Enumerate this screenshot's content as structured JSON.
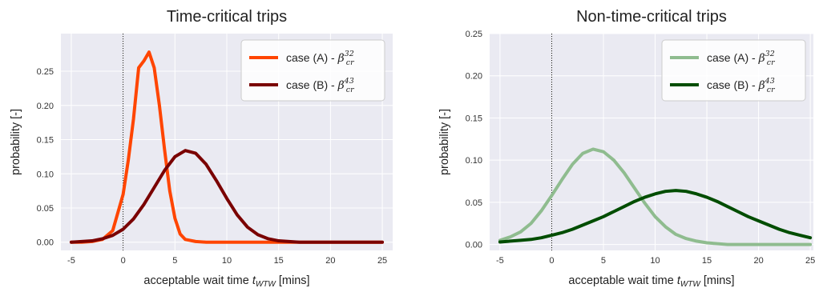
{
  "chart_data": [
    {
      "type": "line",
      "title": "Time-critical trips",
      "xlabel_text": "acceptable wait time ",
      "xlabel_symbol": "t",
      "xlabel_subscript": "WTW",
      "xlabel_unit": " [mins]",
      "ylabel": "probability [-]",
      "xlim": [
        -6,
        26
      ],
      "ylim": [
        -0.012,
        0.305
      ],
      "xticks": [
        -5,
        0,
        5,
        10,
        15,
        20,
        25
      ],
      "yticks": [
        0.0,
        0.05,
        0.1,
        0.15,
        0.2,
        0.25
      ],
      "ytick_labels": [
        "0.00",
        "0.05",
        "0.10",
        "0.15",
        "0.20",
        "0.25"
      ],
      "vline_x": 0,
      "grid": true,
      "legend_placement": "top-right",
      "series": [
        {
          "name_text": "case (A) - ",
          "name_symbol": "β",
          "name_sub": "cr",
          "name_sup": "32",
          "color": "#ff4500",
          "x": [
            -5,
            -4,
            -3,
            -2,
            -1,
            0,
            0.5,
            1,
            1.5,
            2,
            2.5,
            3,
            3.5,
            4,
            4.5,
            5,
            5.5,
            6,
            7,
            8,
            9,
            10,
            11,
            12,
            13,
            14,
            15,
            16,
            17,
            18,
            19,
            20,
            21,
            22,
            23,
            24,
            25
          ],
          "y": [
            0,
            0,
            0.001,
            0.004,
            0.017,
            0.07,
            0.12,
            0.18,
            0.255,
            0.265,
            0.278,
            0.255,
            0.2,
            0.135,
            0.075,
            0.035,
            0.012,
            0.004,
            0.001,
            0,
            0,
            0,
            0,
            0,
            0,
            0,
            0,
            0,
            0,
            0,
            0,
            0,
            0,
            0,
            0,
            0,
            0
          ]
        },
        {
          "name_text": "case (B) - ",
          "name_symbol": "β",
          "name_sub": "cr",
          "name_sup": "43",
          "color": "#7a0000",
          "x": [
            -5,
            -4,
            -3,
            -2,
            -1,
            0,
            1,
            2,
            3,
            4,
            5,
            6,
            7,
            8,
            9,
            10,
            11,
            12,
            13,
            14,
            15,
            16,
            17,
            18,
            19,
            20,
            21,
            22,
            23,
            24,
            25
          ],
          "y": [
            0,
            0.001,
            0.002,
            0.005,
            0.01,
            0.019,
            0.034,
            0.055,
            0.08,
            0.105,
            0.125,
            0.134,
            0.13,
            0.114,
            0.09,
            0.064,
            0.04,
            0.022,
            0.011,
            0.005,
            0.002,
            0.001,
            0,
            0,
            0,
            0,
            0,
            0,
            0,
            0,
            0
          ]
        }
      ]
    },
    {
      "type": "line",
      "title": "Non-time-critical trips",
      "xlabel_text": "acceptable wait time ",
      "xlabel_symbol": "t",
      "xlabel_subscript": "WTW",
      "xlabel_unit": " [mins]",
      "ylabel": "probability [-]",
      "xlim": [
        -6,
        25.3
      ],
      "ylim": [
        -0.007,
        0.25
      ],
      "xticks": [
        -5,
        0,
        5,
        10,
        15,
        20,
        25
      ],
      "yticks": [
        0.0,
        0.05,
        0.1,
        0.15,
        0.2,
        0.25
      ],
      "ytick_labels": [
        "0.00",
        "0.05",
        "0.10",
        "0.15",
        "0.20",
        "0.25"
      ],
      "vline_x": 0,
      "grid": true,
      "legend_placement": "top-right",
      "series": [
        {
          "name_text": "case (A) - ",
          "name_symbol": "β",
          "name_sub": "cr",
          "name_sup": "32",
          "color": "#8fbc8f",
          "x": [
            -5,
            -4,
            -3,
            -2,
            -1,
            0,
            1,
            2,
            3,
            4,
            5,
            6,
            7,
            8,
            9,
            10,
            11,
            12,
            13,
            14,
            15,
            16,
            17,
            18,
            19,
            20,
            21,
            22,
            23,
            24,
            25
          ],
          "y": [
            0.005,
            0.009,
            0.015,
            0.025,
            0.04,
            0.058,
            0.077,
            0.095,
            0.108,
            0.113,
            0.11,
            0.1,
            0.085,
            0.067,
            0.049,
            0.033,
            0.021,
            0.012,
            0.007,
            0.004,
            0.002,
            0.001,
            0,
            0,
            0,
            0,
            0,
            0,
            0,
            0,
            0
          ]
        },
        {
          "name_text": "case (B) - ",
          "name_symbol": "β",
          "name_sub": "cr",
          "name_sup": "43",
          "color": "#004d00",
          "x": [
            -5,
            -4,
            -3,
            -2,
            -1,
            0,
            1,
            2,
            3,
            4,
            5,
            6,
            7,
            8,
            9,
            10,
            11,
            12,
            13,
            14,
            15,
            16,
            17,
            18,
            19,
            20,
            21,
            22,
            23,
            24,
            25
          ],
          "y": [
            0.003,
            0.004,
            0.005,
            0.006,
            0.008,
            0.011,
            0.014,
            0.018,
            0.023,
            0.028,
            0.033,
            0.039,
            0.045,
            0.051,
            0.056,
            0.06,
            0.063,
            0.064,
            0.063,
            0.06,
            0.056,
            0.051,
            0.045,
            0.039,
            0.033,
            0.028,
            0.023,
            0.018,
            0.014,
            0.011,
            0.008
          ]
        }
      ]
    }
  ]
}
